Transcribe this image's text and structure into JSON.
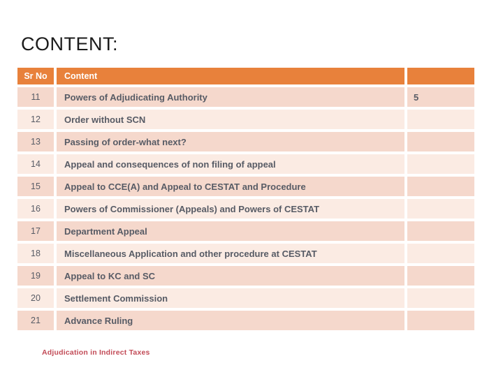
{
  "slide": {
    "title": "CONTENT:",
    "footer": "Adjudication in Indirect Taxes"
  },
  "table": {
    "headers": [
      "Sr No",
      "Content",
      ""
    ],
    "rows": [
      {
        "sr_no": "11",
        "content": "Powers of Adjudicating Authority",
        "page": "5"
      },
      {
        "sr_no": "12",
        "content": "Order without SCN",
        "page": ""
      },
      {
        "sr_no": "13",
        "content": "Passing of order-what next?",
        "page": ""
      },
      {
        "sr_no": "14",
        "content": "Appeal and consequences of non filing of appeal",
        "page": ""
      },
      {
        "sr_no": "15",
        "content": "Appeal to CCE(A) and Appeal to CESTAT and Procedure",
        "page": ""
      },
      {
        "sr_no": "16",
        "content": "Powers of Commissioner (Appeals) and Powers of CESTAT",
        "page": ""
      },
      {
        "sr_no": "17",
        "content": "Department Appeal",
        "page": ""
      },
      {
        "sr_no": "18",
        "content": "Miscellaneous Application and other procedure at CESTAT",
        "page": ""
      },
      {
        "sr_no": "19",
        "content": "Appeal to KC and SC",
        "page": ""
      },
      {
        "sr_no": "20",
        "content": "Settlement Commission",
        "page": ""
      },
      {
        "sr_no": "21",
        "content": "Advance Ruling",
        "page": ""
      }
    ]
  },
  "colors": {
    "header_bg": "#e8813b",
    "row_dark": "#f5d8cc",
    "row_light": "#fbebe3",
    "body_text": "#575b65",
    "header_text": "#ffffff",
    "title_text": "#1b1b1b",
    "footer_text": "#c24b57"
  }
}
